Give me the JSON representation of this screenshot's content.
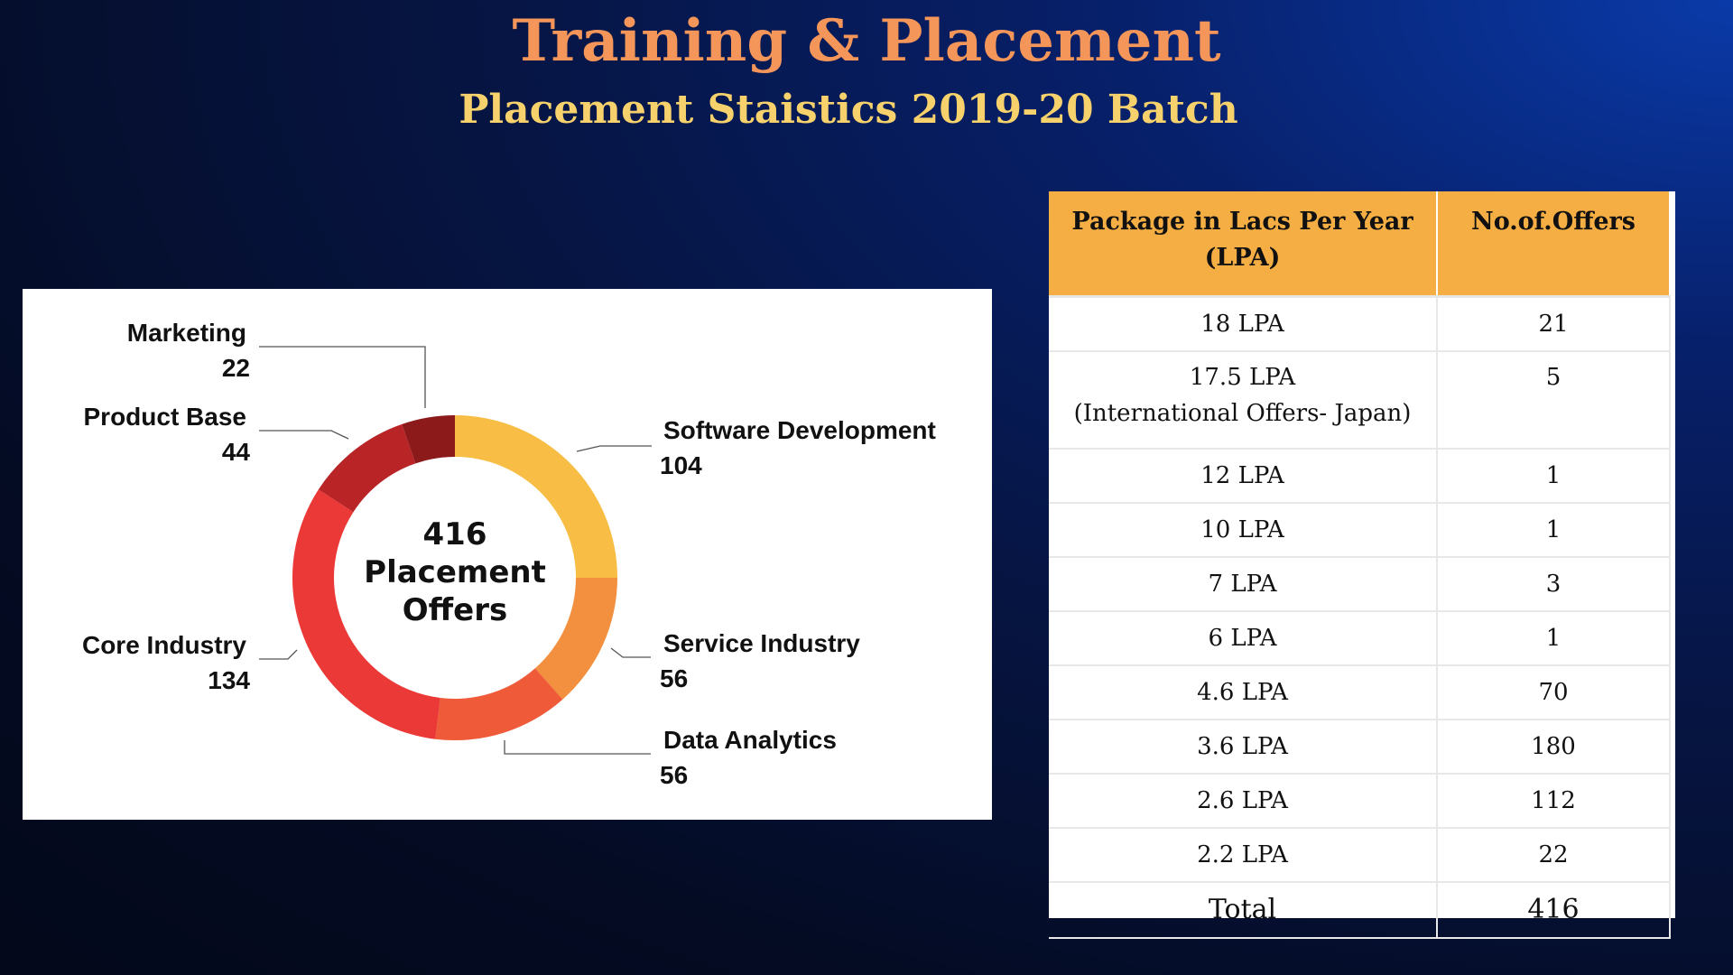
{
  "header": {
    "title": "Training & Placement",
    "subtitle": "Placement Staistics 2019-20 Batch"
  },
  "chart_data": {
    "type": "pie",
    "donut": true,
    "center_label": [
      "416",
      "Placement",
      "Offers"
    ],
    "total": 416,
    "slices": [
      {
        "label": "Software Development",
        "value": 104,
        "value_text": "104",
        "color": "#f7bd45"
      },
      {
        "label": "Service Industry",
        "value": 56,
        "value_text": "56",
        "color": "#f2903f"
      },
      {
        "label": "Data Analytics",
        "value": 56,
        "value_text": "56",
        "color": "#ef5a38"
      },
      {
        "label": "Core Industry",
        "value": 134,
        "value_text": "134",
        "color": "#ea3936"
      },
      {
        "label": "Product Base",
        "value": 44,
        "value_text": "44",
        "color": "#b92427"
      },
      {
        "label": "Marketing",
        "value": 22,
        "value_text": "22",
        "color": "#8c1a1a"
      }
    ]
  },
  "table": {
    "headers": [
      "Package in Lacs Per Year (LPA)",
      "No.of.Offers"
    ],
    "rows": [
      {
        "package": "18 LPA",
        "offers": "21"
      },
      {
        "package": "17.5 LPA",
        "note": "(International Offers- Japan)",
        "offers": "5"
      },
      {
        "package": "12 LPA",
        "offers": "1"
      },
      {
        "package": "10 LPA",
        "offers": "1"
      },
      {
        "package": "7 LPA",
        "offers": "3"
      },
      {
        "package": "6 LPA",
        "offers": "1"
      },
      {
        "package": "4.6 LPA",
        "offers": "70"
      },
      {
        "package": "3.6 LPA",
        "offers": "180"
      },
      {
        "package": "2.6 LPA",
        "offers": "112"
      },
      {
        "package": "2.2 LPA",
        "offers": "22"
      }
    ],
    "total": {
      "label": "Total",
      "value": "416"
    }
  },
  "colors": {
    "title": "#f4955a",
    "subtitle": "#f7d16b",
    "table_header": "#f5ae43"
  }
}
